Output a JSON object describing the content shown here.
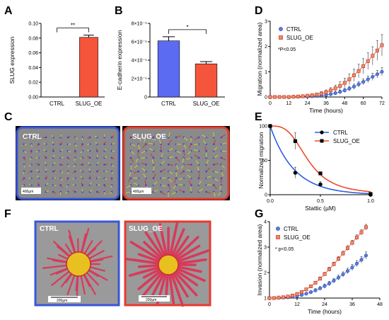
{
  "panels": [
    "A",
    "B",
    "C",
    "D",
    "E",
    "F",
    "G"
  ],
  "chart_data": [
    {
      "id": "A",
      "type": "bar",
      "categories": [
        "CTRL",
        "SLUG_OE"
      ],
      "values": [
        0.0,
        0.081
      ],
      "errors": [
        0.0,
        0.003
      ],
      "ylabel": "SLUG expression",
      "ylim": [
        0,
        0.1
      ],
      "yticks": [
        "0.00",
        "0.02",
        "0.04",
        "0.06",
        "0.08",
        "0.10"
      ],
      "significance": "**",
      "colors": [
        "#5b6bf2",
        "#f5553a"
      ]
    },
    {
      "id": "B",
      "type": "bar",
      "categories": [
        "CTRL",
        "SLUG_OE"
      ],
      "values": [
        6.1e-05,
        3.6e-05
      ],
      "errors": [
        4.5e-06,
        2.5e-06
      ],
      "ylabel": "E-cadherin expression",
      "ylim": [
        0,
        8e-05
      ],
      "yticks": [
        "0",
        "2×10⁻⁵",
        "4×10⁻⁵",
        "6×10⁻⁵",
        "8×10⁻⁵"
      ],
      "significance": "*",
      "colors": [
        "#5b6bf2",
        "#f5553a"
      ]
    },
    {
      "id": "D",
      "type": "line",
      "xlabel": "Time (hours)",
      "ylabel": "Migration (normalized area)",
      "xlim": [
        0,
        72
      ],
      "ylim": [
        0,
        3
      ],
      "xticks": [
        "0",
        "12",
        "24",
        "36",
        "48",
        "60",
        "72"
      ],
      "yticks": [
        "0",
        "1",
        "2",
        "3"
      ],
      "annotation": "*P<0.05",
      "series": [
        {
          "name": "CTRL",
          "color": "#3b6fd6",
          "x": [
            0,
            3,
            6,
            9,
            12,
            15,
            18,
            21,
            24,
            27,
            30,
            33,
            36,
            39,
            42,
            45,
            48,
            51,
            54,
            57,
            60,
            63,
            66,
            69,
            72
          ],
          "y": [
            0,
            0,
            0,
            0,
            0,
            0.01,
            0.01,
            0.02,
            0.02,
            0.03,
            0.04,
            0.06,
            0.08,
            0.11,
            0.15,
            0.2,
            0.26,
            0.33,
            0.41,
            0.5,
            0.6,
            0.7,
            0.8,
            0.9,
            1.0
          ],
          "err": [
            0,
            0,
            0,
            0,
            0,
            0.01,
            0.01,
            0.01,
            0.02,
            0.02,
            0.02,
            0.03,
            0.04,
            0.05,
            0.06,
            0.07,
            0.08,
            0.09,
            0.1,
            0.11,
            0.12,
            0.13,
            0.14,
            0.15,
            0.16
          ]
        },
        {
          "name": "SLUG_OE",
          "color": "#e8452e",
          "x": [
            0,
            3,
            6,
            9,
            12,
            15,
            18,
            21,
            24,
            27,
            30,
            33,
            36,
            39,
            42,
            45,
            48,
            51,
            54,
            57,
            60,
            63,
            66,
            69,
            72
          ],
          "y": [
            0,
            0,
            0,
            0,
            0,
            0.01,
            0.02,
            0.03,
            0.05,
            0.07,
            0.1,
            0.14,
            0.19,
            0.26,
            0.34,
            0.44,
            0.56,
            0.7,
            0.86,
            1.03,
            1.22,
            1.42,
            1.63,
            1.84,
            2.05
          ],
          "err": [
            0,
            0,
            0,
            0,
            0,
            0.01,
            0.01,
            0.02,
            0.03,
            0.04,
            0.05,
            0.07,
            0.09,
            0.11,
            0.13,
            0.16,
            0.18,
            0.21,
            0.24,
            0.27,
            0.3,
            0.33,
            0.36,
            0.39,
            0.42
          ]
        }
      ]
    },
    {
      "id": "E",
      "type": "line",
      "xlabel": "Stattic (µM)",
      "ylabel": "Normalized migration",
      "xlim": [
        0,
        1
      ],
      "ylim": [
        0,
        100
      ],
      "xticks": [
        "0.0",
        "0.5",
        "1.0"
      ],
      "yticks": [
        "0",
        "50",
        "100"
      ],
      "series": [
        {
          "name": "CTRL",
          "color": "#2f5fe0",
          "x": [
            0,
            0.25,
            0.5,
            1.0
          ],
          "y": [
            100,
            32,
            15,
            0
          ],
          "err": [
            0,
            8,
            4,
            1
          ]
        },
        {
          "name": "SLUG_OE",
          "color": "#f04a2c",
          "x": [
            0,
            0.25,
            0.5,
            1.0
          ],
          "y": [
            100,
            78,
            31,
            1
          ],
          "err": [
            0,
            12,
            2,
            1
          ]
        }
      ]
    },
    {
      "id": "G",
      "type": "line",
      "xlabel": "Time (hours)",
      "ylabel": "Invasion (normalized area)",
      "xlim": [
        0,
        48
      ],
      "ylim": [
        1,
        4
      ],
      "xticks": [
        "0",
        "12",
        "24",
        "36",
        "48"
      ],
      "yticks": [
        "1",
        "2",
        "3",
        "4"
      ],
      "annotation": "* p<0.05",
      "series": [
        {
          "name": "CTRL",
          "color": "#3b6fd6",
          "x": [
            0,
            2,
            4,
            6,
            8,
            10,
            12,
            14,
            16,
            18,
            20,
            22,
            24,
            26,
            28,
            30,
            32,
            34,
            36,
            38,
            40,
            42
          ],
          "y": [
            1,
            1,
            1.01,
            1.02,
            1.03,
            1.05,
            1.08,
            1.12,
            1.17,
            1.23,
            1.3,
            1.38,
            1.47,
            1.57,
            1.68,
            1.8,
            1.93,
            2.06,
            2.2,
            2.35,
            2.5,
            2.67
          ],
          "err": [
            0,
            0.01,
            0.01,
            0.02,
            0.02,
            0.03,
            0.04,
            0.05,
            0.05,
            0.06,
            0.07,
            0.07,
            0.08,
            0.09,
            0.09,
            0.1,
            0.1,
            0.11,
            0.12,
            0.12,
            0.13,
            0.14
          ]
        },
        {
          "name": "SLUG_OE",
          "color": "#e8452e",
          "x": [
            0,
            2,
            4,
            6,
            8,
            10,
            12,
            14,
            16,
            18,
            20,
            22,
            24,
            26,
            28,
            30,
            32,
            34,
            36,
            38,
            40,
            42
          ],
          "y": [
            1,
            1,
            1.02,
            1.03,
            1.06,
            1.1,
            1.16,
            1.24,
            1.34,
            1.46,
            1.6,
            1.76,
            1.94,
            2.13,
            2.33,
            2.54,
            2.75,
            2.96,
            3.17,
            3.38,
            3.58,
            3.78
          ],
          "err": [
            0,
            0.01,
            0.01,
            0.02,
            0.03,
            0.03,
            0.04,
            0.05,
            0.05,
            0.06,
            0.06,
            0.07,
            0.07,
            0.08,
            0.08,
            0.09,
            0.09,
            0.1,
            0.1,
            0.1,
            0.11,
            0.11
          ]
        }
      ]
    }
  ],
  "images": {
    "C": {
      "left_label": "CTRL",
      "right_label": "SLUG_OE",
      "left_scale": "400µm",
      "right_scale": "400µm",
      "left_border": "#3a56d8",
      "right_border": "#e83a2e"
    },
    "F": {
      "left_label": "CTRL",
      "right_label": "SLUG_OE",
      "left_scale": "200µm",
      "right_scale": "200µm",
      "left_border": "#3a56d8",
      "right_border": "#e83a2e"
    }
  }
}
